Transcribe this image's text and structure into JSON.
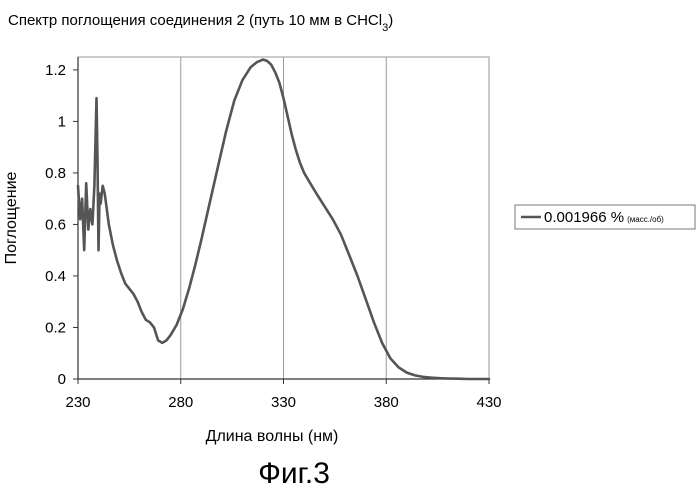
{
  "chart_data": {
    "type": "line",
    "title": "Спектр поглощения соединения 2 (путь 10 мм в CHCl",
    "title_sub": "3",
    "title_end": ")",
    "xlabel": "Длина волны (нм)",
    "ylabel": "Поглощение",
    "xlim": [
      230,
      430
    ],
    "ylim": [
      0,
      1.25
    ],
    "x_ticks": [
      230,
      280,
      330,
      380,
      430
    ],
    "x_tick_labels": [
      "230",
      "280",
      "330",
      "380",
      "430"
    ],
    "y_ticks": [
      0,
      0.2,
      0.4,
      0.6,
      0.8,
      1,
      1.2
    ],
    "y_tick_labels": [
      "0",
      "0.2",
      "0.4",
      "0.6",
      "0.8",
      "1",
      "1.2"
    ],
    "grid_x": true,
    "grid_y": false,
    "legend_position": "right",
    "series": [
      {
        "name": "0.001966 %",
        "name_small": "(масс./об)",
        "color": "#555555",
        "x": [
          230,
          231,
          232,
          233,
          234,
          235,
          236,
          237,
          238,
          239,
          239.5,
          240,
          240.5,
          241,
          242,
          243,
          244,
          245,
          247,
          249,
          251,
          253,
          255,
          257,
          259,
          261,
          263,
          265,
          267,
          269,
          271,
          273,
          275,
          278,
          281,
          284,
          287,
          290,
          294,
          298,
          302,
          306,
          310,
          314,
          317,
          320,
          322,
          324,
          326,
          328,
          330,
          332,
          334,
          336,
          338,
          340,
          343,
          346,
          350,
          354,
          358,
          362,
          366,
          370,
          374,
          378,
          382,
          386,
          390,
          394,
          398,
          402,
          406,
          410,
          415,
          420,
          425,
          430
        ],
        "y": [
          0.75,
          0.62,
          0.7,
          0.5,
          0.76,
          0.58,
          0.66,
          0.6,
          0.75,
          1.09,
          0.85,
          0.5,
          0.72,
          0.68,
          0.75,
          0.72,
          0.66,
          0.6,
          0.52,
          0.46,
          0.41,
          0.37,
          0.35,
          0.33,
          0.3,
          0.26,
          0.23,
          0.22,
          0.2,
          0.15,
          0.14,
          0.15,
          0.17,
          0.21,
          0.27,
          0.35,
          0.44,
          0.54,
          0.68,
          0.82,
          0.96,
          1.08,
          1.16,
          1.21,
          1.23,
          1.24,
          1.235,
          1.22,
          1.19,
          1.15,
          1.09,
          1.02,
          0.95,
          0.89,
          0.84,
          0.8,
          0.76,
          0.72,
          0.67,
          0.62,
          0.56,
          0.48,
          0.4,
          0.31,
          0.22,
          0.14,
          0.08,
          0.045,
          0.025,
          0.014,
          0.008,
          0.005,
          0.003,
          0.002,
          0.001,
          0.0,
          0.0,
          0.0
        ]
      }
    ]
  },
  "figure_label": "Фиг.3"
}
